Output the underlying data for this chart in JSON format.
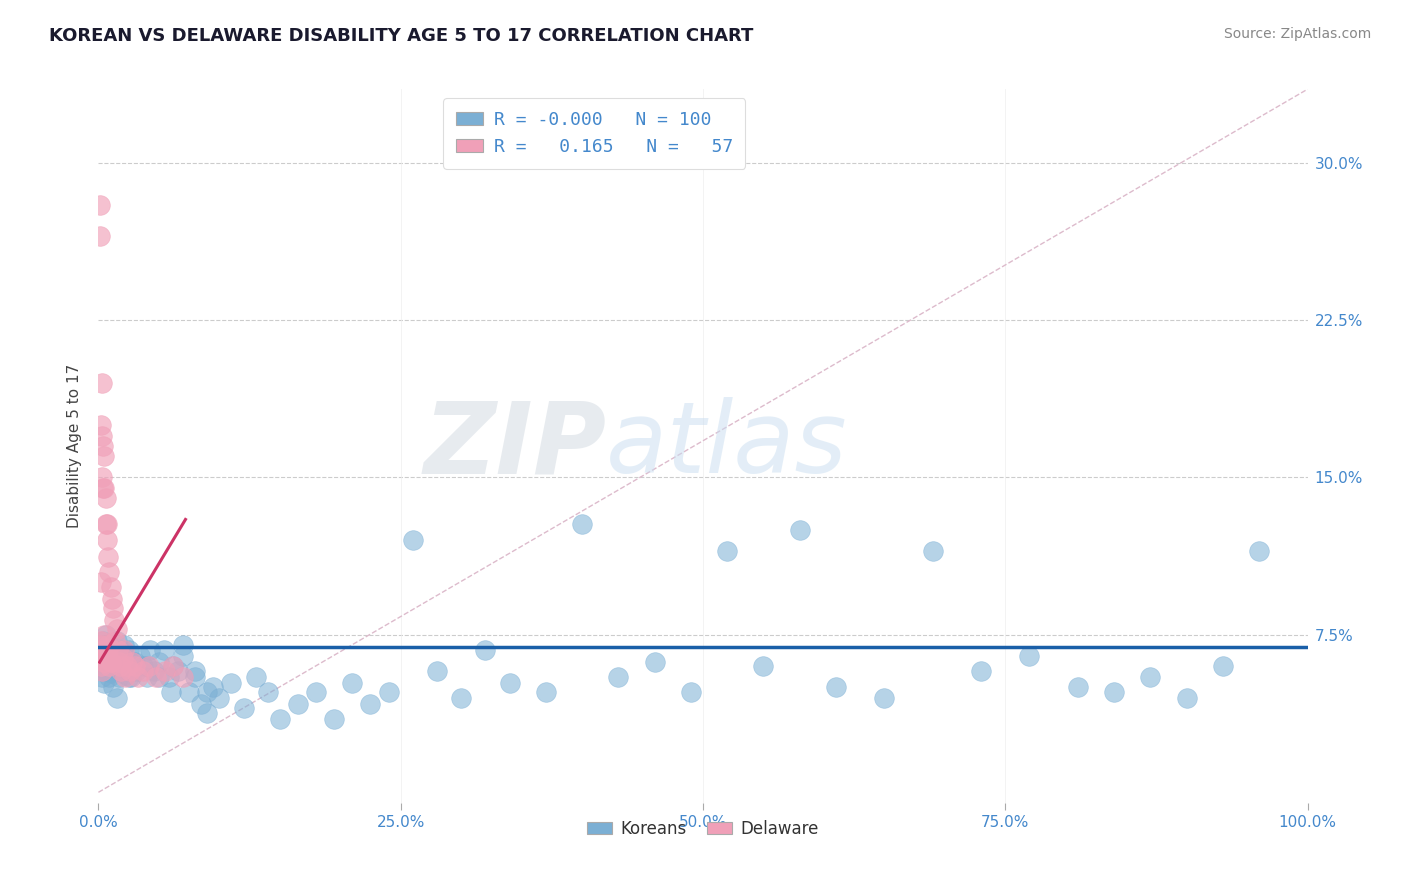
{
  "title": "KOREAN VS DELAWARE DISABILITY AGE 5 TO 17 CORRELATION CHART",
  "source": "Source: ZipAtlas.com",
  "ylabel": "Disability Age 5 to 17",
  "xlim": [
    0,
    1.0
  ],
  "ylim": [
    -0.005,
    0.335
  ],
  "xticks": [
    0.0,
    0.25,
    0.5,
    0.75,
    1.0
  ],
  "xticklabels": [
    "0.0%",
    "25.0%",
    "50.0%",
    "75.0%",
    "100.0%"
  ],
  "ytick_vals": [
    0.075,
    0.15,
    0.225,
    0.3
  ],
  "ytick_labels": [
    "7.5%",
    "15.0%",
    "22.5%",
    "30.0%"
  ],
  "legend_r_blue": "-0.000",
  "legend_n_blue": "100",
  "legend_r_pink": "0.165",
  "legend_n_pink": "57",
  "blue_color": "#7bafd4",
  "pink_color": "#f0a0b8",
  "trend_blue_color": "#1a5fa8",
  "trend_pink_color": "#cc3366",
  "ref_line_color": "#ddbbcc",
  "grid_color": "#cccccc",
  "grid_style": "--",
  "title_color": "#1a1a2e",
  "axis_label_color": "#444444",
  "tick_color": "#4488cc",
  "source_color": "#888888",
  "watermark_color": "#c8ddf0",
  "blue_trend_y": 0.069,
  "blue_x": [
    0.002,
    0.003,
    0.004,
    0.004,
    0.005,
    0.005,
    0.005,
    0.006,
    0.006,
    0.007,
    0.007,
    0.008,
    0.008,
    0.009,
    0.009,
    0.01,
    0.01,
    0.011,
    0.012,
    0.013,
    0.014,
    0.015,
    0.016,
    0.017,
    0.018,
    0.019,
    0.02,
    0.021,
    0.022,
    0.023,
    0.025,
    0.027,
    0.029,
    0.031,
    0.034,
    0.037,
    0.04,
    0.043,
    0.046,
    0.05,
    0.054,
    0.058,
    0.062,
    0.066,
    0.07,
    0.075,
    0.08,
    0.085,
    0.09,
    0.095,
    0.1,
    0.11,
    0.12,
    0.13,
    0.14,
    0.15,
    0.165,
    0.18,
    0.195,
    0.21,
    0.225,
    0.24,
    0.26,
    0.28,
    0.3,
    0.32,
    0.34,
    0.37,
    0.4,
    0.43,
    0.46,
    0.49,
    0.52,
    0.55,
    0.58,
    0.61,
    0.65,
    0.69,
    0.73,
    0.77,
    0.81,
    0.84,
    0.87,
    0.9,
    0.93,
    0.96,
    0.003,
    0.006,
    0.009,
    0.012,
    0.015,
    0.02,
    0.025,
    0.03,
    0.04,
    0.05,
    0.06,
    0.07,
    0.08,
    0.09
  ],
  "blue_y": [
    0.068,
    0.058,
    0.072,
    0.062,
    0.07,
    0.06,
    0.052,
    0.066,
    0.075,
    0.058,
    0.064,
    0.06,
    0.068,
    0.055,
    0.07,
    0.063,
    0.057,
    0.065,
    0.068,
    0.062,
    0.058,
    0.072,
    0.06,
    0.055,
    0.068,
    0.062,
    0.058,
    0.07,
    0.064,
    0.056,
    0.068,
    0.055,
    0.062,
    0.058,
    0.065,
    0.06,
    0.055,
    0.068,
    0.058,
    0.062,
    0.068,
    0.055,
    0.06,
    0.058,
    0.065,
    0.048,
    0.055,
    0.042,
    0.038,
    0.05,
    0.045,
    0.052,
    0.04,
    0.055,
    0.048,
    0.035,
    0.042,
    0.048,
    0.035,
    0.052,
    0.042,
    0.048,
    0.12,
    0.058,
    0.045,
    0.068,
    0.052,
    0.048,
    0.128,
    0.055,
    0.062,
    0.048,
    0.115,
    0.06,
    0.125,
    0.05,
    0.045,
    0.115,
    0.058,
    0.065,
    0.05,
    0.048,
    0.055,
    0.045,
    0.06,
    0.115,
    0.055,
    0.065,
    0.06,
    0.05,
    0.045,
    0.068,
    0.055,
    0.062,
    0.06,
    0.055,
    0.048,
    0.07,
    0.058,
    0.048
  ],
  "pink_x": [
    0.001,
    0.001,
    0.002,
    0.002,
    0.002,
    0.002,
    0.003,
    0.003,
    0.003,
    0.003,
    0.004,
    0.004,
    0.004,
    0.005,
    0.005,
    0.005,
    0.005,
    0.006,
    0.006,
    0.006,
    0.007,
    0.007,
    0.007,
    0.008,
    0.008,
    0.009,
    0.009,
    0.01,
    0.01,
    0.011,
    0.012,
    0.013,
    0.014,
    0.015,
    0.016,
    0.017,
    0.018,
    0.019,
    0.02,
    0.021,
    0.022,
    0.024,
    0.026,
    0.028,
    0.03,
    0.033,
    0.037,
    0.042,
    0.048,
    0.055,
    0.062,
    0.07,
    0.001,
    0.003,
    0.006,
    0.008,
    0.01
  ],
  "pink_y": [
    0.28,
    0.265,
    0.175,
    0.1,
    0.072,
    0.06,
    0.195,
    0.17,
    0.15,
    0.065,
    0.165,
    0.145,
    0.068,
    0.16,
    0.145,
    0.075,
    0.062,
    0.14,
    0.128,
    0.065,
    0.128,
    0.12,
    0.068,
    0.112,
    0.068,
    0.105,
    0.06,
    0.098,
    0.062,
    0.092,
    0.088,
    0.082,
    0.072,
    0.078,
    0.068,
    0.062,
    0.06,
    0.058,
    0.064,
    0.068,
    0.055,
    0.06,
    0.058,
    0.062,
    0.06,
    0.055,
    0.058,
    0.06,
    0.055,
    0.058,
    0.06,
    0.055,
    0.07,
    0.058,
    0.065,
    0.07,
    0.062
  ],
  "pink_trend_x": [
    0.001,
    0.072
  ],
  "pink_trend_y": [
    0.062,
    0.13
  ],
  "ref_line_x": [
    0.0,
    1.0
  ],
  "ref_line_y": [
    0.0,
    0.335
  ]
}
